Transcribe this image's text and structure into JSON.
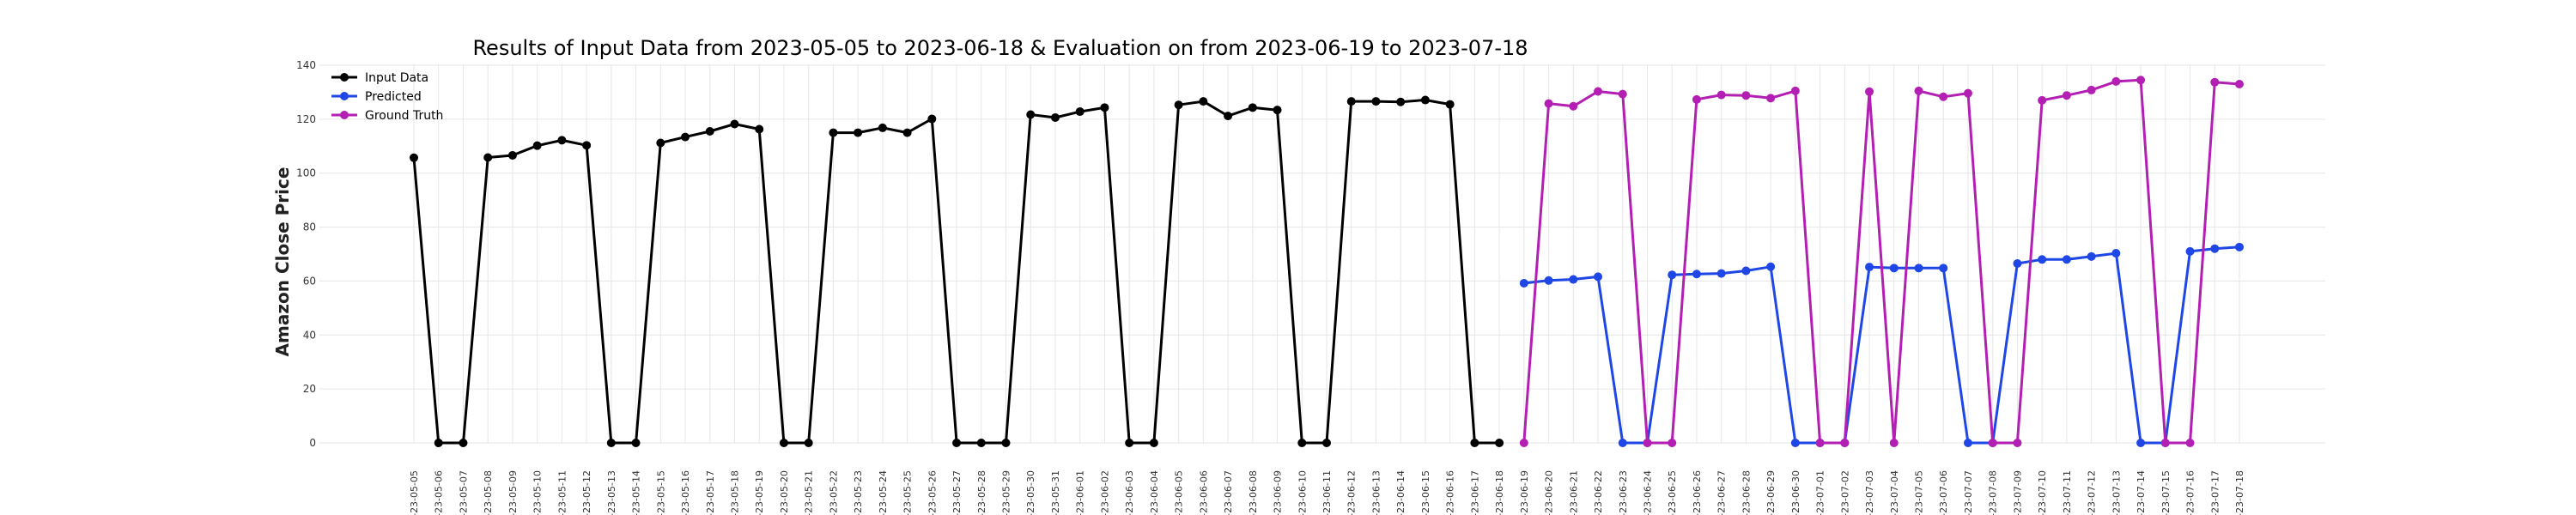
{
  "chart_data": {
    "type": "line",
    "title": "Results of Input Data from 2023-05-05 to 2023-06-18 & Evaluation on from 2023-06-19 to 2023-07-18",
    "xlabel": "",
    "ylabel": "Amazon Close Price",
    "ylim": [
      0,
      140
    ],
    "yticks": [
      0,
      20,
      40,
      60,
      80,
      100,
      120,
      140
    ],
    "grid": true,
    "legend_position": "top-left",
    "x": [
      "2023-05-05",
      "2023-05-06",
      "2023-05-07",
      "2023-05-08",
      "2023-05-09",
      "2023-05-10",
      "2023-05-11",
      "2023-05-12",
      "2023-05-13",
      "2023-05-14",
      "2023-05-15",
      "2023-05-16",
      "2023-05-17",
      "2023-05-18",
      "2023-05-19",
      "2023-05-20",
      "2023-05-21",
      "2023-05-22",
      "2023-05-23",
      "2023-05-24",
      "2023-05-25",
      "2023-05-26",
      "2023-05-27",
      "2023-05-28",
      "2023-05-29",
      "2023-05-30",
      "2023-05-31",
      "2023-06-01",
      "2023-06-02",
      "2023-06-03",
      "2023-06-04",
      "2023-06-05",
      "2023-06-06",
      "2023-06-07",
      "2023-06-08",
      "2023-06-09",
      "2023-06-10",
      "2023-06-11",
      "2023-06-12",
      "2023-06-13",
      "2023-06-14",
      "2023-06-15",
      "2023-06-16",
      "2023-06-17",
      "2023-06-18",
      "2023-06-19",
      "2023-06-20",
      "2023-06-21",
      "2023-06-22",
      "2023-06-23",
      "2023-06-24",
      "2023-06-25",
      "2023-06-26",
      "2023-06-27",
      "2023-06-28",
      "2023-06-29",
      "2023-06-30",
      "2023-07-01",
      "2023-07-02",
      "2023-07-03",
      "2023-07-04",
      "2023-07-05",
      "2023-07-06",
      "2023-07-07",
      "2023-07-08",
      "2023-07-09",
      "2023-07-10",
      "2023-07-11",
      "2023-07-12",
      "2023-07-13",
      "2023-07-14",
      "2023-07-15",
      "2023-07-16",
      "2023-07-17",
      "2023-07-18"
    ],
    "x_tick_labels": [
      "-23-05-05",
      "-23-05-06",
      "-23-05-07",
      "-23-05-08",
      "-23-05-09",
      "-23-05-10",
      "-23-05-11",
      "-23-05-12",
      "-23-05-13",
      "-23-05-14",
      "-23-05-15",
      "-23-05-16",
      "-23-05-17",
      "-23-05-18",
      "-23-05-19",
      "-23-05-20",
      "-23-05-21",
      "-23-05-22",
      "-23-05-23",
      "-23-05-24",
      "-23-05-25",
      "-23-05-26",
      "-23-05-27",
      "-23-05-28",
      "-23-05-29",
      "-23-05-30",
      "-23-05-31",
      "-23-06-01",
      "-23-06-02",
      "-23-06-03",
      "-23-06-04",
      "-23-06-05",
      "-23-06-06",
      "-23-06-07",
      "-23-06-08",
      "-23-06-09",
      "-23-06-10",
      "-23-06-11",
      "-23-06-12",
      "-23-06-13",
      "-23-06-14",
      "-23-06-15",
      "-23-06-16",
      "-23-06-17",
      "-23-06-18",
      "-23-06-19",
      "-23-06-20",
      "-23-06-21",
      "-23-06-22",
      "-23-06-23",
      "-23-06-24",
      "-23-06-25",
      "-23-06-26",
      "-23-06-27",
      "-23-06-28",
      "-23-06-29",
      "-23-06-30",
      "-23-07-01",
      "-23-07-02",
      "-23-07-03",
      "-23-07-04",
      "-23-07-05",
      "-23-07-06",
      "-23-07-07",
      "-23-07-08",
      "-23-07-09",
      "-23-07-10",
      "-23-07-11",
      "-23-07-12",
      "-23-07-13",
      "-23-07-14",
      "-23-07-15",
      "-23-07-16",
      "-23-07-17",
      "-23-07-18"
    ],
    "series": [
      {
        "name": "Input Data",
        "color": "#000000",
        "x": [
          "2023-05-05",
          "2023-05-06",
          "2023-05-07",
          "2023-05-08",
          "2023-05-09",
          "2023-05-10",
          "2023-05-11",
          "2023-05-12",
          "2023-05-13",
          "2023-05-14",
          "2023-05-15",
          "2023-05-16",
          "2023-05-17",
          "2023-05-18",
          "2023-05-19",
          "2023-05-20",
          "2023-05-21",
          "2023-05-22",
          "2023-05-23",
          "2023-05-24",
          "2023-05-25",
          "2023-05-26",
          "2023-05-27",
          "2023-05-28",
          "2023-05-29",
          "2023-05-30",
          "2023-05-31",
          "2023-06-01",
          "2023-06-02",
          "2023-06-03",
          "2023-06-04",
          "2023-06-05",
          "2023-06-06",
          "2023-06-07",
          "2023-06-08",
          "2023-06-09",
          "2023-06-10",
          "2023-06-11",
          "2023-06-12",
          "2023-06-13",
          "2023-06-14",
          "2023-06-15",
          "2023-06-16",
          "2023-06-17",
          "2023-06-18"
        ],
        "values": [
          105.7,
          0,
          0,
          105.8,
          106.6,
          110.2,
          112.2,
          110.3,
          0,
          0,
          111.2,
          113.4,
          115.5,
          118.2,
          116.3,
          0,
          0,
          115.0,
          115.0,
          116.8,
          115.0,
          120.1,
          0,
          0,
          0,
          121.7,
          120.6,
          122.8,
          124.3,
          0,
          0,
          125.3,
          126.6,
          121.2,
          124.3,
          123.4,
          0,
          0,
          126.6,
          126.6,
          126.4,
          127.1,
          125.5,
          0,
          0
        ]
      },
      {
        "name": "Predicted",
        "color": "#1f47e6",
        "x": [
          "2023-06-19",
          "2023-06-20",
          "2023-06-21",
          "2023-06-22",
          "2023-06-23",
          "2023-06-24",
          "2023-06-25",
          "2023-06-26",
          "2023-06-27",
          "2023-06-28",
          "2023-06-29",
          "2023-06-30",
          "2023-07-01",
          "2023-07-02",
          "2023-07-03",
          "2023-07-04",
          "2023-07-05",
          "2023-07-06",
          "2023-07-07",
          "2023-07-08",
          "2023-07-09",
          "2023-07-10",
          "2023-07-11",
          "2023-07-12",
          "2023-07-13",
          "2023-07-14",
          "2023-07-15",
          "2023-07-16",
          "2023-07-17",
          "2023-07-18"
        ],
        "values": [
          59.2,
          60.2,
          60.6,
          61.6,
          0,
          0,
          62.3,
          62.6,
          62.8,
          63.8,
          65.3,
          0,
          0,
          0,
          65.2,
          64.8,
          64.8,
          64.8,
          0,
          0,
          66.5,
          68.0,
          68.0,
          69.1,
          70.3,
          0,
          0,
          71.0,
          72.0,
          72.6
        ]
      },
      {
        "name": "Ground Truth",
        "color": "#b31eb3",
        "x": [
          "2023-06-19",
          "2023-06-20",
          "2023-06-21",
          "2023-06-22",
          "2023-06-23",
          "2023-06-24",
          "2023-06-25",
          "2023-06-26",
          "2023-06-27",
          "2023-06-28",
          "2023-06-29",
          "2023-06-30",
          "2023-07-01",
          "2023-07-02",
          "2023-07-03",
          "2023-07-04",
          "2023-07-05",
          "2023-07-06",
          "2023-07-07",
          "2023-07-08",
          "2023-07-09",
          "2023-07-10",
          "2023-07-11",
          "2023-07-12",
          "2023-07-13",
          "2023-07-14",
          "2023-07-15",
          "2023-07-16",
          "2023-07-17",
          "2023-07-18"
        ],
        "values": [
          0,
          125.8,
          124.8,
          130.3,
          129.3,
          0,
          0,
          127.3,
          129.0,
          128.8,
          127.8,
          130.5,
          0,
          0,
          130.2,
          0,
          130.5,
          128.3,
          129.6,
          0,
          0,
          127.0,
          128.8,
          130.8,
          134.0,
          134.5,
          0,
          0,
          133.7,
          133.0
        ]
      }
    ]
  }
}
